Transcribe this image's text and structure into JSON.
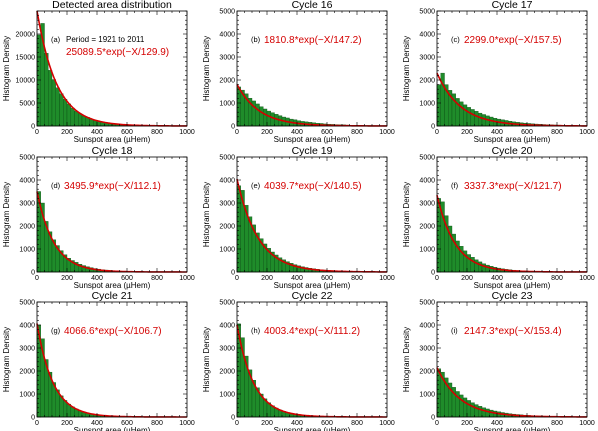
{
  "figure": {
    "xlabel": "Sunspot area (µHem)",
    "ylabel": "Histogram Density",
    "colors": {
      "bar": "#1f8c2a",
      "bar_edge": "#0b4a12",
      "fit": "#d40000"
    }
  },
  "chart_data": [
    {
      "type": "bar",
      "title": "Detected area distribution",
      "panel_label": "(a)",
      "note": "Period = 1921 to 2011",
      "fit_label": "25089.5*exp(−X/129.9)",
      "fit": {
        "amplitude": 25089.5,
        "scale": 129.9
      },
      "xlabel": "Sunspot area (µHem)",
      "ylabel": "Histogram Density",
      "xlim": [
        0,
        1000
      ],
      "ylim": [
        0,
        25000
      ],
      "xticks": [
        0,
        200,
        400,
        600,
        800,
        1000
      ],
      "yticks": [
        0,
        5000,
        10000,
        15000,
        20000
      ],
      "bin_width": 25,
      "x": [
        12.5,
        37.5,
        62.5,
        87.5,
        112.5,
        137.5,
        162.5,
        187.5,
        212.5,
        237.5,
        262.5,
        287.5,
        312.5,
        337.5,
        362.5,
        387.5,
        412.5,
        437.5,
        462.5,
        487.5,
        512.5,
        537.5,
        562.5,
        587.5,
        612.5,
        637.5,
        662.5,
        687.5,
        712.5,
        737.5,
        762.5,
        787.5,
        812.5,
        837.5,
        862.5,
        887.5,
        912.5,
        937.5,
        962.5,
        987.5
      ],
      "values": [
        19800,
        22300,
        15800,
        12100,
        10100,
        8300,
        7000,
        5800,
        4800,
        3900,
        3200,
        2700,
        2200,
        1900,
        1500,
        1250,
        1050,
        870,
        720,
        600,
        500,
        420,
        350,
        300,
        240,
        200,
        170,
        140,
        120,
        100,
        85,
        70,
        60,
        50,
        40,
        35,
        30,
        25,
        20,
        15
      ]
    },
    {
      "type": "bar",
      "title": "Cycle 16",
      "panel_label": "(b)",
      "fit_label": "1810.8*exp(−X/147.2)",
      "fit": {
        "amplitude": 1810.8,
        "scale": 147.2
      },
      "xlabel": "Sunspot area (µHem)",
      "ylabel": "Histogram Density",
      "xlim": [
        0,
        1000
      ],
      "ylim": [
        0,
        5000
      ],
      "xticks": [
        0,
        200,
        400,
        600,
        800,
        1000
      ],
      "yticks": [
        0,
        1000,
        2000,
        3000,
        4000,
        5000
      ],
      "bin_width": 25,
      "x": [
        12.5,
        37.5,
        62.5,
        87.5,
        112.5,
        137.5,
        162.5,
        187.5,
        212.5,
        237.5,
        262.5,
        287.5,
        312.5,
        337.5,
        362.5,
        387.5,
        412.5,
        437.5,
        462.5,
        487.5,
        512.5,
        537.5,
        562.5,
        587.5,
        612.5,
        637.5,
        662.5,
        687.5,
        712.5,
        737.5,
        762.5,
        787.5,
        812.5,
        837.5,
        862.5,
        887.5,
        912.5,
        937.5,
        962.5,
        987.5
      ],
      "values": [
        1700,
        1560,
        1400,
        1210,
        1090,
        960,
        840,
        740,
        650,
        580,
        510,
        450,
        390,
        350,
        300,
        270,
        230,
        200,
        180,
        160,
        140,
        120,
        110,
        90,
        80,
        70,
        60,
        55,
        50,
        40,
        35,
        30,
        28,
        25,
        20,
        18,
        15,
        13,
        12,
        10
      ]
    },
    {
      "type": "bar",
      "title": "Cycle 17",
      "panel_label": "(c)",
      "fit_label": "2299.0*exp(−X/157.5)",
      "fit": {
        "amplitude": 2299.0,
        "scale": 157.5
      },
      "xlabel": "Sunspot area (µHem)",
      "ylabel": "Histogram Density",
      "xlim": [
        0,
        1000
      ],
      "ylim": [
        0,
        5000
      ],
      "xticks": [
        0,
        200,
        400,
        600,
        800,
        1000
      ],
      "yticks": [
        0,
        1000,
        2000,
        3000,
        4000,
        5000
      ],
      "bin_width": 25,
      "x": [
        12.5,
        37.5,
        62.5,
        87.5,
        112.5,
        137.5,
        162.5,
        187.5,
        212.5,
        237.5,
        262.5,
        287.5,
        312.5,
        337.5,
        362.5,
        387.5,
        412.5,
        437.5,
        462.5,
        487.5,
        512.5,
        537.5,
        562.5,
        587.5,
        612.5,
        637.5,
        662.5,
        687.5,
        712.5,
        737.5,
        762.5,
        787.5,
        812.5,
        837.5,
        862.5,
        887.5,
        912.5,
        937.5,
        962.5,
        987.5
      ],
      "values": [
        1800,
        2300,
        1800,
        1550,
        1400,
        1200,
        1050,
        920,
        810,
        720,
        640,
        560,
        500,
        440,
        390,
        340,
        300,
        270,
        240,
        210,
        180,
        160,
        140,
        125,
        110,
        95,
        85,
        75,
        65,
        58,
        50,
        45,
        40,
        35,
        30,
        27,
        24,
        21,
        18,
        16
      ]
    },
    {
      "type": "bar",
      "title": "Cycle 18",
      "panel_label": "(d)",
      "fit_label": "3495.9*exp(−X/112.1)",
      "fit": {
        "amplitude": 3495.9,
        "scale": 112.1
      },
      "xlabel": "Sunspot area (µHem)",
      "ylabel": "Histogram Density",
      "xlim": [
        0,
        1000
      ],
      "ylim": [
        0,
        5000
      ],
      "xticks": [
        0,
        200,
        400,
        600,
        800,
        1000
      ],
      "yticks": [
        0,
        1000,
        2000,
        3000,
        4000,
        5000
      ],
      "bin_width": 25,
      "x": [
        12.5,
        37.5,
        62.5,
        87.5,
        112.5,
        137.5,
        162.5,
        187.5,
        212.5,
        237.5,
        262.5,
        287.5,
        312.5,
        337.5,
        362.5,
        387.5,
        412.5,
        437.5,
        462.5,
        487.5,
        512.5,
        537.5,
        562.5,
        587.5,
        612.5,
        637.5,
        662.5,
        687.5,
        712.5,
        737.5,
        762.5,
        787.5,
        812.5,
        837.5,
        862.5,
        887.5,
        912.5,
        937.5,
        962.5,
        987.5
      ],
      "values": [
        3500,
        3000,
        2200,
        1750,
        1400,
        1150,
        930,
        750,
        600,
        500,
        420,
        340,
        280,
        230,
        190,
        150,
        125,
        100,
        85,
        70,
        55,
        45,
        38,
        30,
        25,
        21,
        17,
        14,
        12,
        10,
        8,
        7,
        6,
        5,
        4,
        4,
        3,
        3,
        2,
        2
      ]
    },
    {
      "type": "bar",
      "title": "Cycle 19",
      "panel_label": "(e)",
      "fit_label": "4039.7*exp(−X/140.5)",
      "fit": {
        "amplitude": 4039.7,
        "scale": 140.5
      },
      "xlabel": "Sunspot area (µHem)",
      "ylabel": "Histogram Density",
      "xlim": [
        0,
        1000
      ],
      "ylim": [
        0,
        5000
      ],
      "xticks": [
        0,
        200,
        400,
        600,
        800,
        1000
      ],
      "yticks": [
        0,
        1000,
        2000,
        3000,
        4000,
        5000
      ],
      "bin_width": 25,
      "x": [
        12.5,
        37.5,
        62.5,
        87.5,
        112.5,
        137.5,
        162.5,
        187.5,
        212.5,
        237.5,
        262.5,
        287.5,
        312.5,
        337.5,
        362.5,
        387.5,
        412.5,
        437.5,
        462.5,
        487.5,
        512.5,
        537.5,
        562.5,
        587.5,
        612.5,
        637.5,
        662.5,
        687.5,
        712.5,
        737.5,
        762.5,
        787.5,
        812.5,
        837.5,
        862.5,
        887.5,
        912.5,
        937.5,
        962.5,
        987.5
      ],
      "values": [
        3750,
        3550,
        2900,
        2400,
        2050,
        1700,
        1450,
        1220,
        1030,
        870,
        740,
        620,
        530,
        450,
        380,
        320,
        270,
        230,
        195,
        165,
        140,
        120,
        100,
        85,
        72,
        60,
        51,
        43,
        37,
        31,
        26,
        22,
        19,
        16,
        14,
        12,
        10,
        8,
        7,
        6
      ]
    },
    {
      "type": "bar",
      "title": "Cycle 20",
      "panel_label": "(f)",
      "fit_label": "3337.3*exp(−X/121.7)",
      "fit": {
        "amplitude": 3337.3,
        "scale": 121.7
      },
      "xlabel": "Sunspot area (µHem)",
      "ylabel": "Histogram Density",
      "xlim": [
        0,
        1000
      ],
      "ylim": [
        0,
        5000
      ],
      "xticks": [
        0,
        200,
        400,
        600,
        800,
        1000
      ],
      "yticks": [
        0,
        1000,
        2000,
        3000,
        4000,
        5000
      ],
      "bin_width": 25,
      "x": [
        12.5,
        37.5,
        62.5,
        87.5,
        112.5,
        137.5,
        162.5,
        187.5,
        212.5,
        237.5,
        262.5,
        287.5,
        312.5,
        337.5,
        362.5,
        387.5,
        412.5,
        437.5,
        462.5,
        487.5,
        512.5,
        537.5,
        562.5,
        587.5,
        612.5,
        637.5,
        662.5,
        687.5,
        712.5,
        737.5,
        762.5,
        787.5,
        812.5,
        837.5,
        862.5,
        887.5,
        912.5,
        937.5,
        962.5,
        987.5
      ],
      "values": [
        3200,
        3050,
        2450,
        2000,
        1650,
        1350,
        1120,
        920,
        760,
        640,
        530,
        440,
        360,
        300,
        250,
        205,
        170,
        140,
        115,
        95,
        80,
        66,
        55,
        45,
        37,
        31,
        26,
        21,
        17,
        14,
        12,
        10,
        8,
        7,
        6,
        5,
        4,
        3,
        3,
        2
      ]
    },
    {
      "type": "bar",
      "title": "Cycle 21",
      "panel_label": "(g)",
      "fit_label": "4066.6*exp(−X/106.7)",
      "fit": {
        "amplitude": 4066.6,
        "scale": 106.7
      },
      "xlabel": "Sunspot area (µHem)",
      "ylabel": "Histogram Density",
      "xlim": [
        0,
        1000
      ],
      "ylim": [
        0,
        5000
      ],
      "xticks": [
        0,
        200,
        400,
        600,
        800,
        1000
      ],
      "yticks": [
        0,
        1000,
        2000,
        3000,
        4000,
        5000
      ],
      "bin_width": 25,
      "x": [
        12.5,
        37.5,
        62.5,
        87.5,
        112.5,
        137.5,
        162.5,
        187.5,
        212.5,
        237.5,
        262.5,
        287.5,
        312.5,
        337.5,
        362.5,
        387.5,
        412.5,
        437.5,
        462.5,
        487.5,
        512.5,
        537.5,
        562.5,
        587.5,
        612.5,
        637.5,
        662.5,
        687.5,
        712.5,
        737.5,
        762.5,
        787.5,
        812.5,
        837.5,
        862.5,
        887.5,
        912.5,
        937.5,
        962.5,
        987.5
      ],
      "values": [
        4000,
        3400,
        2500,
        1950,
        1500,
        1180,
        920,
        720,
        560,
        440,
        350,
        270,
        215,
        170,
        135,
        105,
        82,
        65,
        51,
        40,
        32,
        25,
        20,
        16,
        12,
        10,
        8,
        6,
        5,
        4,
        3,
        3,
        2,
        2,
        2,
        1,
        1,
        1,
        1,
        1
      ]
    },
    {
      "type": "bar",
      "title": "Cycle 22",
      "panel_label": "(h)",
      "fit_label": "4003.4*exp(−X/111.2)",
      "fit": {
        "amplitude": 4003.4,
        "scale": 111.2
      },
      "xlabel": "Sunspot area (µHem)",
      "ylabel": "Histogram Density",
      "xlim": [
        0,
        1000
      ],
      "ylim": [
        0,
        5000
      ],
      "xticks": [
        0,
        200,
        400,
        600,
        800,
        1000
      ],
      "yticks": [
        0,
        1000,
        2000,
        3000,
        4000,
        5000
      ],
      "bin_width": 25,
      "x": [
        12.5,
        37.5,
        62.5,
        87.5,
        112.5,
        137.5,
        162.5,
        187.5,
        212.5,
        237.5,
        262.5,
        287.5,
        312.5,
        337.5,
        362.5,
        387.5,
        412.5,
        437.5,
        462.5,
        487.5,
        512.5,
        537.5,
        562.5,
        587.5,
        612.5,
        637.5,
        662.5,
        687.5,
        712.5,
        737.5,
        762.5,
        787.5,
        812.5,
        837.5,
        862.5,
        887.5,
        912.5,
        937.5,
        962.5,
        987.5
      ],
      "values": [
        4050,
        3450,
        2650,
        2050,
        1600,
        1270,
        1000,
        790,
        620,
        490,
        390,
        305,
        245,
        195,
        155,
        122,
        97,
        77,
        61,
        48,
        38,
        30,
        24,
        19,
        15,
        12,
        10,
        8,
        6,
        5,
        4,
        3,
        3,
        2,
        2,
        2,
        1,
        1,
        1,
        1
      ]
    },
    {
      "type": "bar",
      "title": "Cycle 23",
      "panel_label": "(i)",
      "fit_label": "2147.3*exp(−X/153.4)",
      "fit": {
        "amplitude": 2147.3,
        "scale": 153.4
      },
      "xlabel": "Sunspot area (µHem)",
      "ylabel": "Histogram Density",
      "xlim": [
        0,
        1000
      ],
      "ylim": [
        0,
        5000
      ],
      "xticks": [
        0,
        200,
        400,
        600,
        800,
        1000
      ],
      "yticks": [
        0,
        1000,
        2000,
        3000,
        4000,
        5000
      ],
      "bin_width": 25,
      "x": [
        12.5,
        37.5,
        62.5,
        87.5,
        112.5,
        137.5,
        162.5,
        187.5,
        212.5,
        237.5,
        262.5,
        287.5,
        312.5,
        337.5,
        362.5,
        387.5,
        412.5,
        437.5,
        462.5,
        487.5,
        512.5,
        537.5,
        562.5,
        587.5,
        612.5,
        637.5,
        662.5,
        687.5,
        712.5,
        737.5,
        762.5,
        787.5,
        812.5,
        837.5,
        862.5,
        887.5,
        912.5,
        937.5,
        962.5,
        987.5
      ],
      "values": [
        2100,
        1950,
        1700,
        1480,
        1290,
        1110,
        960,
        830,
        720,
        620,
        540,
        465,
        400,
        350,
        300,
        260,
        225,
        195,
        170,
        145,
        125,
        108,
        94,
        81,
        70,
        60,
        52,
        45,
        39,
        34,
        29,
        25,
        22,
        19,
        16,
        14,
        12,
        11,
        9,
        8
      ]
    }
  ]
}
